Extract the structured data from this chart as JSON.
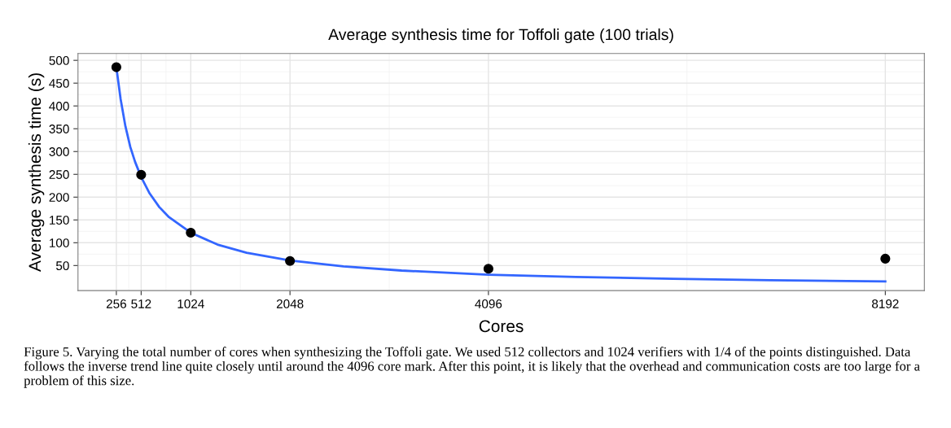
{
  "chart_data": {
    "type": "scatter",
    "title": "Average synthesis time for Toffoli gate (100 trials)",
    "xlabel": "Cores",
    "ylabel": "Average synthesis time (s)",
    "x": [
      256,
      512,
      1024,
      2048,
      4096,
      8192
    ],
    "series": [
      {
        "color": "#000000",
        "marker": "circle",
        "values": [
          485,
          249,
          122,
          60,
          43,
          65
        ]
      },
      {
        "type": "line",
        "color": "#3366ff",
        "marker": "none",
        "x": [
          256,
          300,
          350,
          400,
          450,
          512,
          600,
          700,
          800,
          1024,
          1300,
          1600,
          2048,
          2600,
          3200,
          4096,
          5000,
          6000,
          7000,
          8192
        ],
        "values": [
          485,
          415,
          355,
          310,
          277,
          244,
          208,
          178,
          156,
          122,
          96,
          78,
          61,
          48,
          39,
          30,
          25,
          21,
          18,
          15
        ]
      }
    ],
    "xlim": [
      -140,
      8595
    ],
    "ylim": [
      -5,
      515
    ],
    "xticks": [
      256,
      512,
      1024,
      2048,
      4096,
      8192
    ],
    "yticks": [
      50,
      100,
      150,
      200,
      250,
      300,
      350,
      400,
      450,
      500
    ],
    "grid": true,
    "annotations": [
      "Figure 5. Varying the total number of cores when synthesizing the Toffoli gate. We used 512 collectors and 1024 verifiers with 1/4 of the points distinguished. Data follows the inverse trend line quite closely until around the 4096 core mark. After this point, it is likely that the overhead and communication costs are too large for a problem of this size."
    ]
  }
}
